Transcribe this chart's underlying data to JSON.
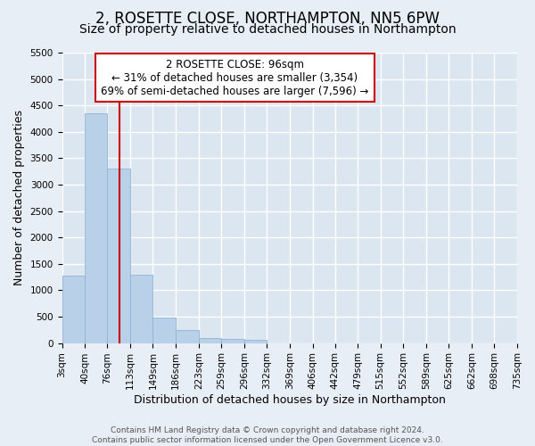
{
  "title": "2, ROSETTE CLOSE, NORTHAMPTON, NN5 6PW",
  "subtitle": "Size of property relative to detached houses in Northampton",
  "xlabel": "Distribution of detached houses by size in Northampton",
  "ylabel": "Number of detached properties",
  "footer_line1": "Contains HM Land Registry data © Crown copyright and database right 2024.",
  "footer_line2": "Contains public sector information licensed under the Open Government Licence v3.0.",
  "bar_edges": [
    3,
    40,
    76,
    113,
    149,
    186,
    223,
    259,
    296,
    332,
    369,
    406,
    442,
    479,
    515,
    552,
    589,
    625,
    662,
    698,
    735
  ],
  "bar_heights": [
    1275,
    4350,
    3300,
    1300,
    480,
    240,
    100,
    75,
    60,
    0,
    0,
    0,
    0,
    0,
    0,
    0,
    0,
    0,
    0,
    0
  ],
  "bar_color": "#b8d0e8",
  "bar_edgecolor": "#90b4d4",
  "vline_x": 96,
  "vline_color": "#cc0000",
  "annotation_line1": "2 ROSETTE CLOSE: 96sqm",
  "annotation_line2": "← 31% of detached houses are smaller (3,354)",
  "annotation_line3": "69% of semi-detached houses are larger (7,596) →",
  "ylim": [
    0,
    5500
  ],
  "yticks": [
    0,
    500,
    1000,
    1500,
    2000,
    2500,
    3000,
    3500,
    4000,
    4500,
    5000,
    5500
  ],
  "bg_color": "#e8eef5",
  "plot_bg_color": "#dce6f0",
  "grid_color": "#ffffff",
  "title_fontsize": 12,
  "subtitle_fontsize": 10,
  "axis_label_fontsize": 9,
  "tick_fontsize": 7.5,
  "annotation_fontsize": 8.5,
  "footer_fontsize": 6.5
}
